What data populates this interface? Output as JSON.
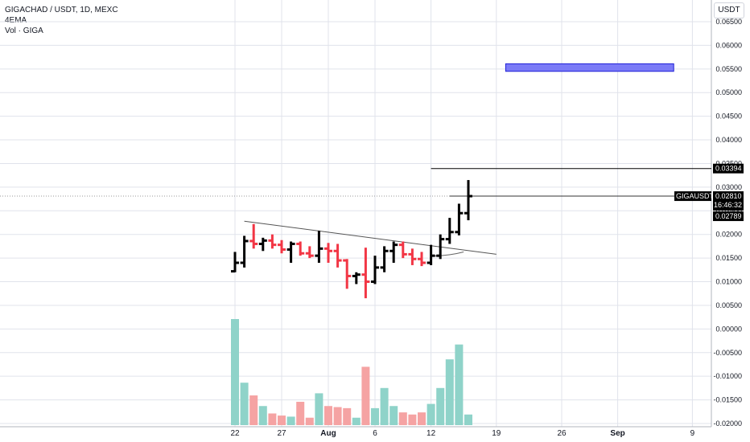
{
  "legend": {
    "symbol_line": "GIGACHAD / USDT, 1D, MEXC",
    "indicator": "4EMA",
    "volume": "Vol · GIGA"
  },
  "currency_button": "USDT",
  "colors": {
    "up": "#000000",
    "down": "#f23645",
    "vol_up": "#8fd3c9",
    "vol_down": "#f5a3a3",
    "zone_fill": "#7b7bf7",
    "zone_stroke": "#1f1fd6",
    "grid": "#e0e3eb"
  },
  "price_tags": [
    {
      "name": "level-tag",
      "value": "0.03394"
    },
    {
      "name": "symbol-tag",
      "label": "GIGAUSDT",
      "value": "0.02810",
      "countdown": "16:46:32"
    },
    {
      "name": "low-tag",
      "value": "0.02789"
    }
  ],
  "chart_data": {
    "type": "ohlc",
    "y_axis": {
      "min": -0.02,
      "max": 0.065,
      "ticks": [
        "0.06500",
        "0.06000",
        "0.05500",
        "0.05000",
        "0.04500",
        "0.04000",
        "0.03500",
        "0.03000",
        "0.02500",
        "0.02000",
        "0.01500",
        "0.01000",
        "0.00500",
        "0.00000",
        "-0.00500",
        "-0.01000",
        "-0.01500",
        "-0.02000"
      ]
    },
    "x_axis": {
      "ticks": [
        {
          "label": "22",
          "day": 0
        },
        {
          "label": "27",
          "day": 5
        },
        {
          "label": "Aug",
          "day": 10,
          "bold": true
        },
        {
          "label": "6",
          "day": 15
        },
        {
          "label": "12",
          "day": 21
        },
        {
          "label": "19",
          "day": 28
        },
        {
          "label": "26",
          "day": 35
        },
        {
          "label": "Sep",
          "day": 41,
          "bold": true
        },
        {
          "label": "9",
          "day": 49
        }
      ]
    },
    "candles": [
      {
        "day": 0,
        "o": 0.0122,
        "h": 0.0163,
        "l": 0.012,
        "c": 0.014
      },
      {
        "day": 1,
        "o": 0.014,
        "h": 0.0197,
        "l": 0.013,
        "c": 0.0186
      },
      {
        "day": 2,
        "o": 0.0186,
        "h": 0.0222,
        "l": 0.017,
        "c": 0.018
      },
      {
        "day": 3,
        "o": 0.018,
        "h": 0.0193,
        "l": 0.0165,
        "c": 0.0187
      },
      {
        "day": 4,
        "o": 0.0187,
        "h": 0.02,
        "l": 0.017,
        "c": 0.0178
      },
      {
        "day": 5,
        "o": 0.0178,
        "h": 0.0188,
        "l": 0.016,
        "c": 0.0168
      },
      {
        "day": 6,
        "o": 0.0168,
        "h": 0.0185,
        "l": 0.014,
        "c": 0.018
      },
      {
        "day": 7,
        "o": 0.018,
        "h": 0.0185,
        "l": 0.0155,
        "c": 0.016
      },
      {
        "day": 8,
        "o": 0.016,
        "h": 0.0175,
        "l": 0.015,
        "c": 0.0155
      },
      {
        "day": 9,
        "o": 0.0155,
        "h": 0.0208,
        "l": 0.014,
        "c": 0.017
      },
      {
        "day": 10,
        "o": 0.017,
        "h": 0.0182,
        "l": 0.014,
        "c": 0.0165
      },
      {
        "day": 11,
        "o": 0.0165,
        "h": 0.018,
        "l": 0.013,
        "c": 0.0145
      },
      {
        "day": 12,
        "o": 0.0145,
        "h": 0.0148,
        "l": 0.0085,
        "c": 0.0112
      },
      {
        "day": 13,
        "o": 0.0112,
        "h": 0.012,
        "l": 0.0095,
        "c": 0.0115
      },
      {
        "day": 14,
        "o": 0.0115,
        "h": 0.0172,
        "l": 0.0065,
        "c": 0.01
      },
      {
        "day": 15,
        "o": 0.01,
        "h": 0.0155,
        "l": 0.0095,
        "c": 0.013
      },
      {
        "day": 16,
        "o": 0.013,
        "h": 0.0175,
        "l": 0.012,
        "c": 0.0165
      },
      {
        "day": 17,
        "o": 0.0165,
        "h": 0.0185,
        "l": 0.014,
        "c": 0.0178
      },
      {
        "day": 18,
        "o": 0.0178,
        "h": 0.0185,
        "l": 0.015,
        "c": 0.0158
      },
      {
        "day": 19,
        "o": 0.0158,
        "h": 0.017,
        "l": 0.0135,
        "c": 0.0148
      },
      {
        "day": 20,
        "o": 0.0148,
        "h": 0.0163,
        "l": 0.0133,
        "c": 0.014
      },
      {
        "day": 21,
        "o": 0.014,
        "h": 0.0178,
        "l": 0.0135,
        "c": 0.0155
      },
      {
        "day": 22,
        "o": 0.0155,
        "h": 0.02,
        "l": 0.0148,
        "c": 0.019
      },
      {
        "day": 23,
        "o": 0.019,
        "h": 0.0235,
        "l": 0.018,
        "c": 0.0205
      },
      {
        "day": 24,
        "o": 0.0205,
        "h": 0.0265,
        "l": 0.0198,
        "c": 0.0245
      },
      {
        "day": 25,
        "o": 0.0245,
        "h": 0.0315,
        "l": 0.023,
        "c": 0.0281
      }
    ],
    "volume": {
      "max": 100,
      "bars": [
        {
          "day": 0,
          "v": 100,
          "dir": "up"
        },
        {
          "day": 1,
          "v": 40,
          "dir": "up"
        },
        {
          "day": 2,
          "v": 28,
          "dir": "down"
        },
        {
          "day": 3,
          "v": 18,
          "dir": "up"
        },
        {
          "day": 4,
          "v": 11,
          "dir": "down"
        },
        {
          "day": 5,
          "v": 9,
          "dir": "down"
        },
        {
          "day": 6,
          "v": 8,
          "dir": "up"
        },
        {
          "day": 7,
          "v": 22,
          "dir": "down"
        },
        {
          "day": 8,
          "v": 7,
          "dir": "down"
        },
        {
          "day": 9,
          "v": 30,
          "dir": "up"
        },
        {
          "day": 10,
          "v": 18,
          "dir": "down"
        },
        {
          "day": 11,
          "v": 17,
          "dir": "down"
        },
        {
          "day": 12,
          "v": 16,
          "dir": "down"
        },
        {
          "day": 13,
          "v": 7,
          "dir": "up"
        },
        {
          "day": 14,
          "v": 55,
          "dir": "down"
        },
        {
          "day": 15,
          "v": 16,
          "dir": "up"
        },
        {
          "day": 16,
          "v": 35,
          "dir": "up"
        },
        {
          "day": 17,
          "v": 18,
          "dir": "up"
        },
        {
          "day": 18,
          "v": 12,
          "dir": "down"
        },
        {
          "day": 19,
          "v": 10,
          "dir": "down"
        },
        {
          "day": 20,
          "v": 12,
          "dir": "down"
        },
        {
          "day": 21,
          "v": 20,
          "dir": "up"
        },
        {
          "day": 22,
          "v": 35,
          "dir": "up"
        },
        {
          "day": 23,
          "v": 62,
          "dir": "up"
        },
        {
          "day": 24,
          "v": 76,
          "dir": "up"
        },
        {
          "day": 25,
          "v": 10,
          "dir": "up"
        }
      ]
    },
    "drawings": {
      "trendline": {
        "from": {
          "day": 1,
          "price": 0.0228
        },
        "to": {
          "day": 28,
          "price": 0.0158
        }
      },
      "horizontal_line": {
        "from_day": 21,
        "to_day": 50,
        "price": 0.03394
      },
      "current_price_line": {
        "from_day": 23,
        "to_day": 50,
        "price": 0.0281
      },
      "target_zone": {
        "from_day": 29,
        "to_day": 47,
        "top": 0.0561,
        "bottom": 0.0545
      },
      "curve": [
        {
          "day": 21,
          "price": 0.0154
        },
        {
          "day": 23,
          "price": 0.0155
        },
        {
          "day": 24.5,
          "price": 0.0163
        }
      ]
    }
  }
}
